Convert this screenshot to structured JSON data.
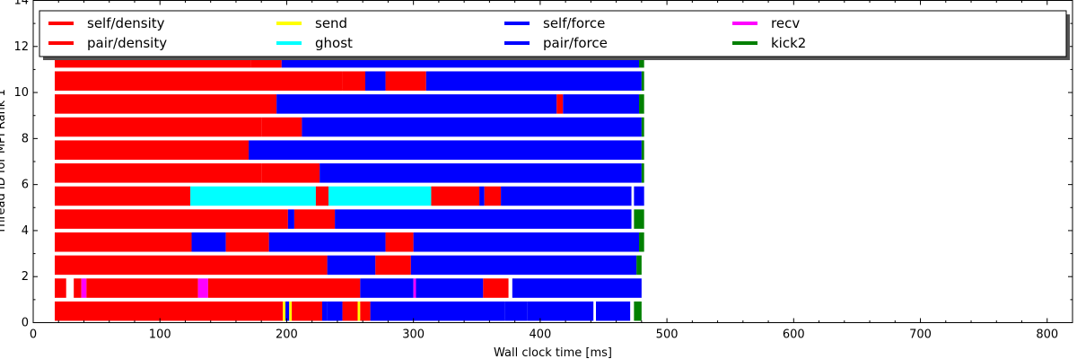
{
  "chart_data": {
    "type": "bar",
    "orientation": "horizontal-timeline",
    "xlabel": "Wall clock time [ms]",
    "ylabel": "Thread ID for MPI Rank 1",
    "xlim": [
      0,
      820
    ],
    "ylim": [
      0,
      14
    ],
    "x_ticks": [
      0,
      100,
      200,
      300,
      400,
      500,
      600,
      700,
      800
    ],
    "y_ticks": [
      0,
      2,
      4,
      6,
      8,
      10,
      12,
      14
    ],
    "grid": false,
    "legend_position": "top",
    "legend": [
      {
        "name": "self/density",
        "color": "#ff0000"
      },
      {
        "name": "pair/density",
        "color": "#ff0000"
      },
      {
        "name": "send",
        "color": "#ffff00"
      },
      {
        "name": "ghost",
        "color": "#00ffff"
      },
      {
        "name": "self/force",
        "color": "#0000ff"
      },
      {
        "name": "pair/force",
        "color": "#0000ff"
      },
      {
        "name": "recv",
        "color": "#ff00ff"
      },
      {
        "name": "kick2",
        "color": "#008000"
      }
    ],
    "threads": [
      {
        "thread": 0,
        "segments": [
          {
            "start": 17,
            "end": 197,
            "task": "self/density"
          },
          {
            "start": 197,
            "end": 199,
            "task": "send"
          },
          {
            "start": 199,
            "end": 202,
            "task": "self/force"
          },
          {
            "start": 202,
            "end": 204,
            "task": "send"
          },
          {
            "start": 204,
            "end": 228,
            "task": "pair/density"
          },
          {
            "start": 228,
            "end": 232,
            "task": "pair/force"
          },
          {
            "start": 232,
            "end": 244,
            "task": "pair/force"
          },
          {
            "start": 244,
            "end": 256,
            "task": "pair/density"
          },
          {
            "start": 256,
            "end": 258,
            "task": "send"
          },
          {
            "start": 258,
            "end": 266,
            "task": "pair/density"
          },
          {
            "start": 266,
            "end": 372,
            "task": "pair/force"
          },
          {
            "start": 372,
            "end": 390,
            "task": "pair/force"
          },
          {
            "start": 390,
            "end": 442,
            "task": "pair/force"
          },
          {
            "start": 444,
            "end": 471,
            "task": "pair/force"
          },
          {
            "start": 474,
            "end": 480,
            "task": "kick2"
          }
        ]
      },
      {
        "thread": 1,
        "segments": [
          {
            "start": 17,
            "end": 26,
            "task": "pair/density"
          },
          {
            "start": 32,
            "end": 38,
            "task": "pair/density"
          },
          {
            "start": 38,
            "end": 42,
            "task": "recv"
          },
          {
            "start": 42,
            "end": 130,
            "task": "pair/density"
          },
          {
            "start": 130,
            "end": 138,
            "task": "recv"
          },
          {
            "start": 138,
            "end": 258,
            "task": "pair/density"
          },
          {
            "start": 258,
            "end": 300,
            "task": "self/force"
          },
          {
            "start": 300,
            "end": 302,
            "task": "recv"
          },
          {
            "start": 302,
            "end": 355,
            "task": "pair/force"
          },
          {
            "start": 355,
            "end": 375,
            "task": "pair/density"
          },
          {
            "start": 378,
            "end": 480,
            "task": "pair/force"
          }
        ]
      },
      {
        "thread": 2,
        "segments": [
          {
            "start": 17,
            "end": 232,
            "task": "self/density"
          },
          {
            "start": 232,
            "end": 270,
            "task": "pair/force"
          },
          {
            "start": 270,
            "end": 298,
            "task": "pair/density"
          },
          {
            "start": 298,
            "end": 476,
            "task": "pair/force"
          },
          {
            "start": 476,
            "end": 480,
            "task": "kick2"
          }
        ]
      },
      {
        "thread": 3,
        "segments": [
          {
            "start": 17,
            "end": 125,
            "task": "self/density"
          },
          {
            "start": 125,
            "end": 152,
            "task": "pair/force"
          },
          {
            "start": 152,
            "end": 186,
            "task": "pair/density"
          },
          {
            "start": 186,
            "end": 278,
            "task": "pair/force"
          },
          {
            "start": 278,
            "end": 300,
            "task": "pair/density"
          },
          {
            "start": 300,
            "end": 478,
            "task": "pair/force"
          },
          {
            "start": 478,
            "end": 482,
            "task": "kick2"
          }
        ]
      },
      {
        "thread": 4,
        "segments": [
          {
            "start": 17,
            "end": 201,
            "task": "self/density"
          },
          {
            "start": 201,
            "end": 206,
            "task": "self/force"
          },
          {
            "start": 206,
            "end": 238,
            "task": "pair/density"
          },
          {
            "start": 238,
            "end": 472,
            "task": "pair/force"
          },
          {
            "start": 474,
            "end": 482,
            "task": "kick2"
          }
        ]
      },
      {
        "thread": 5,
        "segments": [
          {
            "start": 17,
            "end": 124,
            "task": "self/density"
          },
          {
            "start": 124,
            "end": 223,
            "task": "ghost"
          },
          {
            "start": 223,
            "end": 233,
            "task": "pair/density"
          },
          {
            "start": 233,
            "end": 314,
            "task": "ghost"
          },
          {
            "start": 314,
            "end": 352,
            "task": "pair/density"
          },
          {
            "start": 352,
            "end": 356,
            "task": "pair/force"
          },
          {
            "start": 356,
            "end": 369,
            "task": "pair/density"
          },
          {
            "start": 369,
            "end": 472,
            "task": "pair/force"
          },
          {
            "start": 474,
            "end": 482,
            "task": "pair/force"
          }
        ]
      },
      {
        "thread": 6,
        "segments": [
          {
            "start": 17,
            "end": 180,
            "task": "self/density"
          },
          {
            "start": 180,
            "end": 226,
            "task": "pair/density"
          },
          {
            "start": 226,
            "end": 480,
            "task": "pair/force"
          },
          {
            "start": 480,
            "end": 482,
            "task": "kick2"
          }
        ]
      },
      {
        "thread": 7,
        "segments": [
          {
            "start": 17,
            "end": 170,
            "task": "self/density"
          },
          {
            "start": 170,
            "end": 480,
            "task": "pair/force"
          },
          {
            "start": 480,
            "end": 482,
            "task": "kick2"
          }
        ]
      },
      {
        "thread": 8,
        "segments": [
          {
            "start": 17,
            "end": 180,
            "task": "self/density"
          },
          {
            "start": 180,
            "end": 212,
            "task": "pair/density"
          },
          {
            "start": 212,
            "end": 480,
            "task": "pair/force"
          },
          {
            "start": 480,
            "end": 482,
            "task": "kick2"
          }
        ]
      },
      {
        "thread": 9,
        "segments": [
          {
            "start": 17,
            "end": 192,
            "task": "self/density"
          },
          {
            "start": 192,
            "end": 413,
            "task": "pair/force"
          },
          {
            "start": 413,
            "end": 418,
            "task": "pair/density"
          },
          {
            "start": 418,
            "end": 478,
            "task": "pair/force"
          },
          {
            "start": 478,
            "end": 482,
            "task": "kick2"
          }
        ]
      },
      {
        "thread": 10,
        "segments": [
          {
            "start": 17,
            "end": 244,
            "task": "self/density"
          },
          {
            "start": 244,
            "end": 262,
            "task": "pair/density"
          },
          {
            "start": 262,
            "end": 278,
            "task": "pair/force"
          },
          {
            "start": 278,
            "end": 310,
            "task": "pair/density"
          },
          {
            "start": 310,
            "end": 480,
            "task": "pair/force"
          },
          {
            "start": 480,
            "end": 482,
            "task": "kick2"
          }
        ]
      },
      {
        "thread": 11,
        "segments": [
          {
            "start": 17,
            "end": 172,
            "task": "self/density"
          },
          {
            "start": 172,
            "end": 196,
            "task": "pair/density"
          },
          {
            "start": 196,
            "end": 478,
            "task": "pair/force"
          },
          {
            "start": 478,
            "end": 482,
            "task": "kick2"
          }
        ]
      }
    ]
  }
}
